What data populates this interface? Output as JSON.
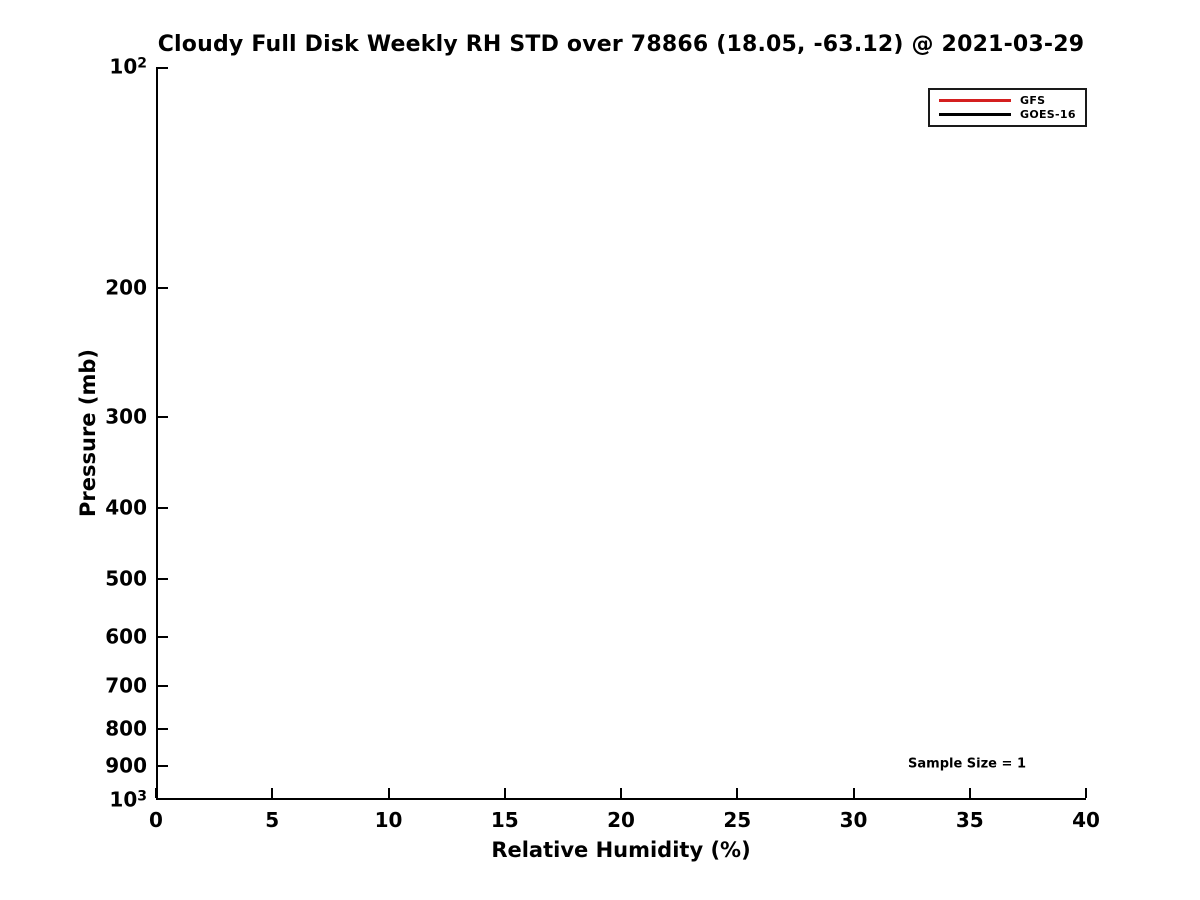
{
  "chart_data": {
    "type": "line",
    "title": "Cloudy Full Disk Weekly RH STD over 78866 (18.05, -63.12) @ 2021-03-29",
    "xlabel": "Relative Humidity (%)",
    "ylabel": "Pressure (mb)",
    "x_axis": {
      "min": 0,
      "max": 40,
      "ticks": [
        0,
        5,
        10,
        15,
        20,
        25,
        30,
        35,
        40
      ]
    },
    "y_axis": {
      "scale": "log",
      "min": 100,
      "max": 1000,
      "inverted": true,
      "ticks": [
        {
          "value": 100,
          "base": "10",
          "exponent": "2"
        },
        {
          "value": 200,
          "label": "200"
        },
        {
          "value": 300,
          "label": "300"
        },
        {
          "value": 400,
          "label": "400"
        },
        {
          "value": 500,
          "label": "500"
        },
        {
          "value": 600,
          "label": "600"
        },
        {
          "value": 700,
          "label": "700"
        },
        {
          "value": 800,
          "label": "800"
        },
        {
          "value": 900,
          "label": "900"
        },
        {
          "value": 1000,
          "base": "10",
          "exponent": "3"
        }
      ]
    },
    "series": [
      {
        "name": "GFS",
        "color": "#d41f1f",
        "x": [],
        "y": []
      },
      {
        "name": "GOES-16",
        "color": "#000000",
        "x": [],
        "y": []
      }
    ],
    "legend_position": "upper right",
    "annotation": "Sample Size = 1",
    "grid": false
  },
  "colors": {
    "background": "#ffffff",
    "axis": "#000000",
    "text": "#000000"
  }
}
